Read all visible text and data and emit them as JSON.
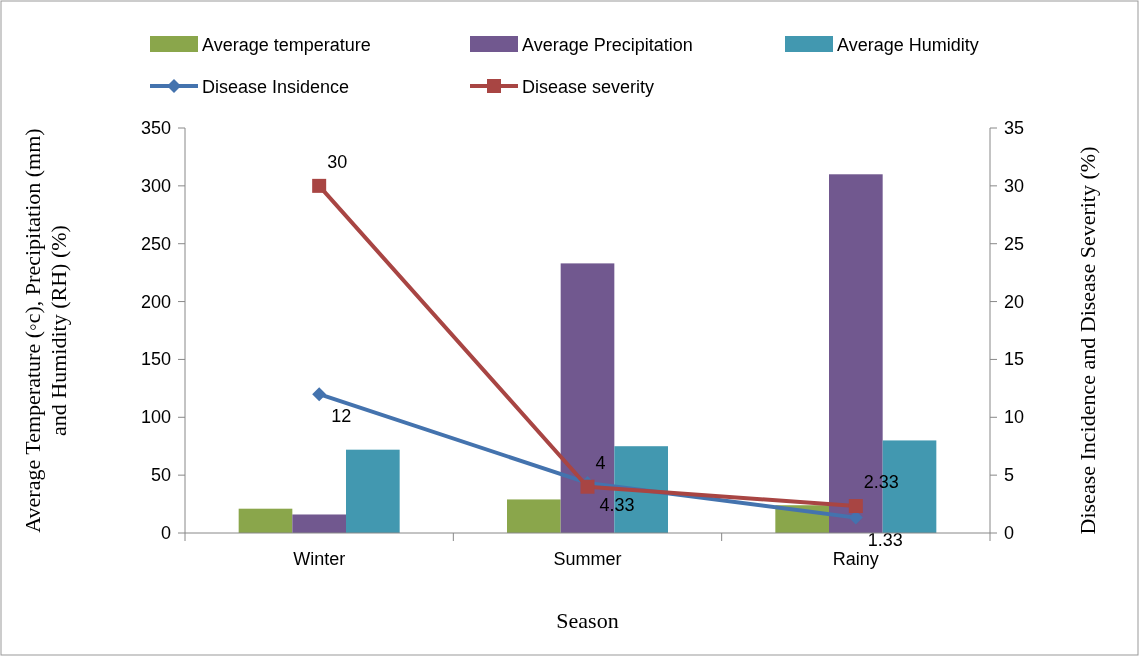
{
  "chart_data": {
    "type": "bar",
    "xlabel": "Season",
    "ylabel": "Average Temperature (◦c), Precipitation (mm)\nand Humidity (RH) (%)",
    "y2label": "Disease Incidence and Disease Severity (%)",
    "categories": [
      "Winter",
      "Summer",
      "Rainy"
    ],
    "series": [
      {
        "name": "Average temperature",
        "color": "#8aa64b",
        "values": [
          21,
          29,
          24
        ]
      },
      {
        "name": "Average Precipitation",
        "color": "#71588f",
        "values": [
          16,
          233,
          310
        ]
      },
      {
        "name": "Average Humidity",
        "color": "#4298b0",
        "values": [
          72,
          75,
          80
        ]
      },
      {
        "name": "Disease Insidence",
        "type": "line",
        "axis": "y2",
        "marker": "diamond",
        "color": "#4473ae",
        "values": [
          12,
          4.33,
          1.33
        ],
        "data_labels": true
      },
      {
        "name": "Disease severity",
        "type": "line",
        "axis": "y2",
        "marker": "square",
        "color": "#a84543",
        "values": [
          30,
          4,
          2.33
        ],
        "data_labels": true
      }
    ],
    "ylim": [
      0,
      350
    ],
    "yticks": [
      0,
      50,
      100,
      150,
      200,
      250,
      300,
      350
    ],
    "y2lim": [
      0,
      35
    ],
    "y2ticks": [
      0,
      5,
      10,
      15,
      20,
      25,
      30,
      35
    ],
    "grid": false,
    "legend": "top"
  }
}
